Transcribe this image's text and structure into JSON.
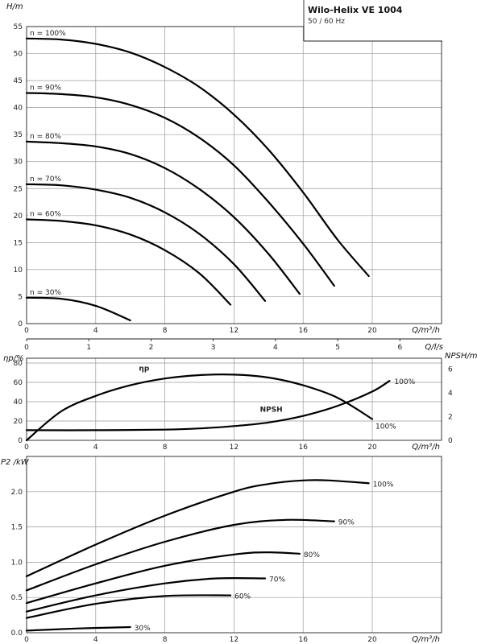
{
  "title_box": {
    "model": "Wilo-Helix VE 1004",
    "frequency": "50 / 60 Hz"
  },
  "chart_data": [
    {
      "type": "line",
      "name": "head",
      "xlabel": "Q/m³/h",
      "ylabel": "H/m",
      "xlim": [
        0,
        24
      ],
      "ylim": [
        0,
        55
      ],
      "x_ticks": [
        0,
        4,
        8,
        12,
        16,
        20
      ],
      "y_ticks": [
        0,
        5,
        10,
        15,
        20,
        25,
        30,
        35,
        40,
        45,
        50,
        55
      ],
      "secondary_x": {
        "label": "Q/l/s",
        "ticks": [
          0,
          1,
          2,
          3,
          4,
          5,
          6
        ]
      },
      "grid": true,
      "series": [
        {
          "name": "n = 100%",
          "x": [
            0,
            2,
            4,
            6,
            8,
            10,
            12,
            14,
            16,
            18,
            19.8
          ],
          "y": [
            52.8,
            52.6,
            51.8,
            50.2,
            47.5,
            43.8,
            38.7,
            32.2,
            24.3,
            15.5,
            8.8
          ]
        },
        {
          "name": "n = 90%",
          "x": [
            0,
            2,
            4,
            6,
            8,
            10,
            12,
            14,
            16,
            17.8
          ],
          "y": [
            42.7,
            42.5,
            41.9,
            40.5,
            38.1,
            34.4,
            29.3,
            22.5,
            14.8,
            7.0
          ]
        },
        {
          "name": "n = 80%",
          "x": [
            0,
            2,
            4,
            6,
            8,
            10,
            12,
            14,
            15.8
          ],
          "y": [
            33.7,
            33.4,
            32.8,
            31.4,
            28.8,
            24.9,
            19.7,
            12.9,
            5.5
          ]
        },
        {
          "name": "n = 70%",
          "x": [
            0,
            2,
            4,
            6,
            8,
            10,
            12,
            13.8
          ],
          "y": [
            25.8,
            25.6,
            24.8,
            23.3,
            20.6,
            16.6,
            11.0,
            4.2
          ]
        },
        {
          "name": "n = 60%",
          "x": [
            0,
            2,
            4,
            6,
            8,
            10,
            11.8
          ],
          "y": [
            19.3,
            19.0,
            18.2,
            16.5,
            13.6,
            9.3,
            3.5
          ]
        },
        {
          "name": "n = 30%",
          "x": [
            0,
            2,
            4,
            6
          ],
          "y": [
            4.8,
            4.6,
            3.3,
            0.6
          ]
        }
      ]
    },
    {
      "type": "line",
      "name": "efficiency-npsh",
      "xlabel": "Q/m³/h",
      "ylabel": "ηp/%",
      "ylabel_right": "NPSH/m",
      "xlim": [
        0,
        24
      ],
      "ylim": [
        0,
        85
      ],
      "ylim_right": [
        0,
        6.9
      ],
      "x_ticks": [
        0,
        4,
        8,
        12,
        16,
        20
      ],
      "y_ticks": [
        0,
        20,
        40,
        60,
        80
      ],
      "y_ticks_right": [
        0,
        2,
        4,
        6
      ],
      "grid": true,
      "series": [
        {
          "name": "ηp",
          "axis": "left",
          "end_label": "100%",
          "x": [
            0,
            2,
            4,
            6,
            8,
            10,
            12,
            14,
            16,
            18,
            20
          ],
          "y": [
            0,
            30,
            46,
            57,
            64,
            67.5,
            68,
            65,
            57,
            44,
            22
          ]
        },
        {
          "name": "NPSH",
          "axis": "right",
          "end_label": "100%",
          "x": [
            0,
            4,
            8,
            10,
            12,
            14,
            16,
            18,
            20,
            21
          ],
          "y": [
            0.85,
            0.85,
            0.9,
            1.0,
            1.2,
            1.5,
            2.05,
            2.9,
            4.1,
            5.0
          ]
        }
      ]
    },
    {
      "type": "line",
      "name": "power",
      "xlabel": "Q/m³/h",
      "ylabel": "P2 /kW",
      "xlim": [
        0,
        24
      ],
      "ylim": [
        0,
        2.5
      ],
      "x_ticks": [
        0,
        4,
        8,
        12,
        16,
        20
      ],
      "y_ticks": [
        0,
        0.5,
        1.0,
        1.5,
        2.0
      ],
      "grid": true,
      "series": [
        {
          "name": "100%",
          "x": [
            0,
            4,
            8,
            12,
            14,
            16,
            17.5,
            19.8
          ],
          "y": [
            0.8,
            1.25,
            1.66,
            2.0,
            2.11,
            2.16,
            2.16,
            2.12
          ]
        },
        {
          "name": "90%",
          "x": [
            0,
            4,
            8,
            12,
            15,
            17.8
          ],
          "y": [
            0.6,
            0.97,
            1.29,
            1.53,
            1.6,
            1.58
          ]
        },
        {
          "name": "80%",
          "x": [
            0,
            4,
            8,
            12,
            14,
            15.8
          ],
          "y": [
            0.42,
            0.7,
            0.95,
            1.11,
            1.14,
            1.12
          ]
        },
        {
          "name": "70%",
          "x": [
            0,
            4,
            8,
            11,
            13.8
          ],
          "y": [
            0.3,
            0.53,
            0.7,
            0.77,
            0.77
          ]
        },
        {
          "name": "60%",
          "x": [
            0,
            4,
            8,
            11.8
          ],
          "y": [
            0.21,
            0.41,
            0.52,
            0.53
          ]
        },
        {
          "name": "30%",
          "x": [
            0,
            3,
            6
          ],
          "y": [
            0.03,
            0.06,
            0.08
          ]
        }
      ]
    }
  ]
}
